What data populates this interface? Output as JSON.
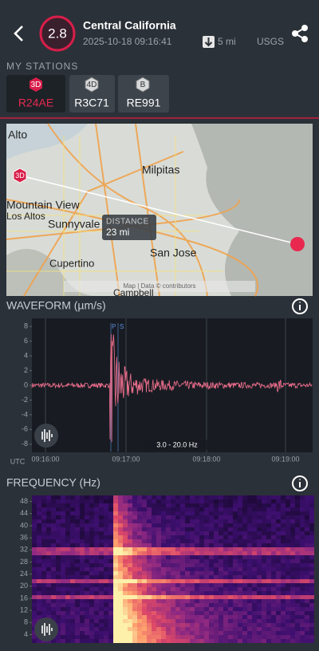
{
  "header": {
    "magnitude": "2.8",
    "region": "Central California",
    "datetime": "2025-10-18 09:16:41",
    "distance": "5 mi",
    "source": "USGS"
  },
  "stations": {
    "title": "MY STATIONS",
    "items": [
      {
        "badge": "3D",
        "name": "R24AE"
      },
      {
        "badge": "4D",
        "name": "R3C71"
      },
      {
        "badge": "B",
        "name": "RE991"
      }
    ]
  },
  "map": {
    "labels": [
      "Alto",
      "Milpitas",
      "Mountain View",
      "Los Altos",
      "Sunnyvale",
      "San Jose",
      "Cupertino",
      "Campbell"
    ],
    "station_badge": "3D",
    "distance_label": "DISTANCE",
    "distance": "23 mi",
    "attribution": "Map | Data © contributors"
  },
  "waveform": {
    "title": "WAVEFORM (µm/s)",
    "ylim": [
      -9,
      9
    ],
    "yticks": [
      8,
      6,
      4,
      2,
      0,
      -2,
      -4,
      -6,
      -8
    ],
    "xticks": [
      "09:16:00",
      "09:17:00",
      "09:18:00",
      "09:19:00"
    ],
    "x_unit": "UTC",
    "filter": "3.0 - 20.0 Hz",
    "phases": [
      "P",
      "S"
    ]
  },
  "frequency": {
    "title": "FREQUENCY (Hz)",
    "ylim": [
      2,
      50
    ],
    "yticks": [
      48,
      44,
      40,
      36,
      32,
      28,
      24,
      20,
      16,
      12,
      8,
      4
    ]
  }
}
